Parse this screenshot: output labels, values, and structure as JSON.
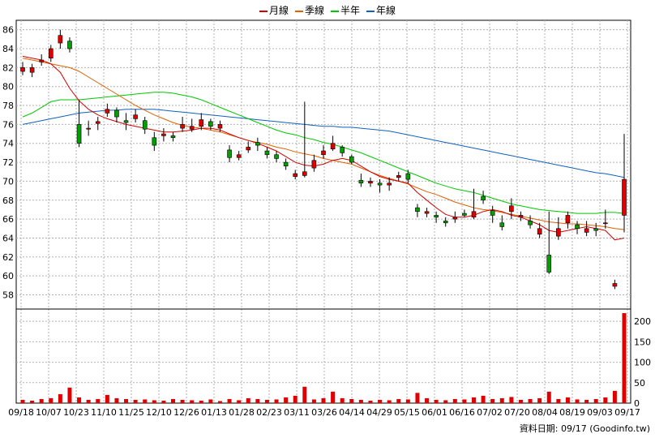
{
  "legend": [
    {
      "label": "月線",
      "color": "#d40000"
    },
    {
      "label": "季線",
      "color": "#e06000"
    },
    {
      "label": "半年",
      "color": "#00c800"
    },
    {
      "label": "年線",
      "color": "#1060c0"
    }
  ],
  "source_note": "資料日期: 09/17  (Goodinfo.tw)",
  "chart_data": {
    "type": "candlestick",
    "x_tick_labels": [
      "09/18",
      "10/07",
      "10/23",
      "11/10",
      "11/25",
      "12/10",
      "12/26",
      "01/13",
      "01/28",
      "02/23",
      "03/11",
      "03/26",
      "04/14",
      "04/29",
      "05/15",
      "06/01",
      "06/16",
      "07/02",
      "07/20",
      "08/04",
      "08/19",
      "09/03",
      "09/17"
    ],
    "price_axis": {
      "ticks": [
        58,
        60,
        62,
        64,
        66,
        68,
        70,
        72,
        74,
        76,
        78,
        80,
        82,
        84,
        86
      ],
      "range": [
        56.5,
        87.0
      ]
    },
    "volume_axis": {
      "ticks": [
        0,
        50,
        100,
        150,
        200
      ],
      "range": [
        0,
        230
      ]
    },
    "price_close": [
      82.0,
      82.0,
      82.8,
      84.0,
      85.4,
      84.0,
      74.0,
      75.6,
      76.3,
      77.6,
      76.8,
      76.2,
      77.0,
      75.5,
      73.8,
      75.0,
      74.6,
      76.0,
      75.8,
      76.5,
      75.8,
      76.0,
      72.5,
      72.8,
      73.6,
      73.8,
      72.8,
      72.4,
      71.6,
      70.8,
      71.0,
      72.2,
      73.2,
      74.0,
      73.0,
      72.0,
      69.8,
      70.0,
      69.6,
      69.8,
      70.6,
      70.2,
      66.8,
      66.8,
      66.2,
      65.6,
      66.2,
      66.4,
      66.8,
      68.0,
      66.4,
      65.2,
      67.4,
      66.4,
      65.4,
      65.0,
      60.4,
      65.0,
      66.4,
      65.0,
      65.0,
      64.8,
      65.6,
      59.2,
      70.2
    ],
    "price_open": [
      81.6,
      81.5,
      82.6,
      83.0,
      84.6,
      84.8,
      76.0,
      75.5,
      76.1,
      77.2,
      77.5,
      76.4,
      76.6,
      76.4,
      74.6,
      74.8,
      74.8,
      75.6,
      75.5,
      75.8,
      76.3,
      75.6,
      73.3,
      72.5,
      73.3,
      74.1,
      73.2,
      72.8,
      72.0,
      70.5,
      70.6,
      71.4,
      72.8,
      73.4,
      73.6,
      72.6,
      70.1,
      69.8,
      69.8,
      69.6,
      70.4,
      70.8,
      67.2,
      66.6,
      66.4,
      65.8,
      66.0,
      66.6,
      66.2,
      68.4,
      66.9,
      65.6,
      66.8,
      66.2,
      65.8,
      64.4,
      62.2,
      64.2,
      65.6,
      65.4,
      64.6,
      65.0,
      65.6,
      58.9,
      66.4
    ],
    "price_high": [
      82.6,
      82.4,
      83.4,
      84.4,
      86.0,
      85.2,
      78.6,
      76.4,
      76.8,
      78.2,
      77.8,
      77.2,
      77.6,
      76.8,
      75.2,
      75.6,
      75.2,
      76.8,
      76.6,
      77.2,
      76.6,
      76.4,
      73.8,
      73.2,
      74.2,
      74.6,
      73.6,
      73.2,
      72.4,
      71.2,
      78.4,
      72.8,
      73.8,
      74.8,
      73.8,
      72.8,
      70.8,
      70.4,
      70.2,
      70.4,
      71.0,
      71.2,
      67.6,
      67.2,
      66.8,
      66.2,
      66.8,
      67.0,
      69.2,
      69.0,
      67.4,
      66.4,
      68.2,
      66.8,
      66.4,
      65.6,
      66.8,
      66.2,
      66.8,
      65.8,
      65.8,
      65.6,
      67.0,
      59.6,
      75.0
    ],
    "price_low": [
      81.2,
      81.0,
      82.2,
      82.6,
      84.0,
      83.6,
      73.6,
      74.8,
      75.4,
      76.8,
      76.2,
      75.4,
      76.2,
      75.0,
      73.2,
      74.2,
      74.2,
      75.2,
      75.2,
      75.4,
      75.4,
      75.2,
      72.0,
      72.2,
      73.0,
      73.2,
      72.4,
      72.0,
      71.2,
      70.2,
      70.4,
      71.0,
      72.4,
      73.2,
      72.6,
      71.8,
      69.4,
      69.4,
      68.8,
      69.0,
      70.0,
      69.8,
      66.2,
      66.2,
      65.6,
      65.2,
      65.6,
      66.2,
      66.0,
      67.6,
      65.6,
      64.8,
      66.0,
      65.8,
      65.0,
      64.0,
      60.2,
      63.8,
      65.0,
      64.4,
      64.2,
      64.2,
      65.0,
      58.6,
      64.6
    ],
    "volume": [
      8,
      6,
      10,
      12,
      22,
      38,
      14,
      8,
      10,
      20,
      12,
      10,
      8,
      9,
      7,
      6,
      10,
      8,
      7,
      6,
      9,
      5,
      10,
      7,
      12,
      10,
      8,
      9,
      14,
      18,
      40,
      9,
      12,
      28,
      12,
      10,
      8,
      6,
      8,
      7,
      10,
      9,
      25,
      12,
      8,
      7,
      10,
      9,
      14,
      18,
      10,
      12,
      15,
      8,
      10,
      12,
      28,
      10,
      14,
      9,
      8,
      10,
      14,
      30,
      220
    ],
    "ma_month": [
      83.2,
      83.0,
      82.8,
      82.4,
      81.5,
      79.8,
      78.5,
      77.6,
      77.0,
      76.6,
      76.3,
      76.0,
      75.8,
      75.6,
      75.4,
      75.2,
      75.2,
      75.3,
      75.4,
      75.6,
      75.6,
      75.4,
      75.0,
      74.6,
      74.3,
      74.0,
      73.6,
      73.2,
      72.6,
      72.0,
      71.7,
      71.6,
      71.8,
      72.2,
      72.4,
      72.2,
      71.6,
      71.0,
      70.5,
      70.2,
      70.0,
      69.8,
      68.8,
      68.0,
      67.2,
      66.5,
      66.2,
      66.2,
      66.4,
      66.8,
      67.0,
      66.8,
      66.4,
      66.2,
      65.8,
      65.4,
      64.8,
      64.6,
      64.8,
      65.0,
      65.2,
      65.0,
      64.8,
      63.8,
      64.0
    ],
    "ma_quarter": [
      83.0,
      82.8,
      82.6,
      82.4,
      82.2,
      82.0,
      81.6,
      81.0,
      80.4,
      79.8,
      79.2,
      78.6,
      78.0,
      77.5,
      77.0,
      76.6,
      76.2,
      75.9,
      75.7,
      75.6,
      75.4,
      75.2,
      74.9,
      74.6,
      74.3,
      74.1,
      73.9,
      73.6,
      73.4,
      73.1,
      72.9,
      72.7,
      72.4,
      72.2,
      72.0,
      71.8,
      71.4,
      71.0,
      70.6,
      70.3,
      70.0,
      69.7,
      69.3,
      68.9,
      68.6,
      68.2,
      67.8,
      67.5,
      67.2,
      67.0,
      66.9,
      66.7,
      66.5,
      66.3,
      66.1,
      65.9,
      65.7,
      65.6,
      65.5,
      65.5,
      65.4,
      65.3,
      65.2,
      65.0,
      64.9
    ],
    "ma_half": [
      76.8,
      77.2,
      77.8,
      78.4,
      78.6,
      78.6,
      78.6,
      78.7,
      78.8,
      78.9,
      79.0,
      79.1,
      79.2,
      79.3,
      79.4,
      79.4,
      79.3,
      79.1,
      78.9,
      78.6,
      78.2,
      77.8,
      77.4,
      77.0,
      76.6,
      76.2,
      75.8,
      75.4,
      75.1,
      74.9,
      74.6,
      74.4,
      74.1,
      73.9,
      73.6,
      73.3,
      73.0,
      72.6,
      72.2,
      71.8,
      71.4,
      71.0,
      70.6,
      70.2,
      69.8,
      69.5,
      69.2,
      69.0,
      68.8,
      68.5,
      68.2,
      67.9,
      67.6,
      67.4,
      67.2,
      67.0,
      66.9,
      66.8,
      66.7,
      66.6,
      66.6,
      66.6,
      66.7,
      66.7,
      66.6
    ],
    "ma_year": [
      76.0,
      76.2,
      76.4,
      76.6,
      76.8,
      77.0,
      77.2,
      77.3,
      77.4,
      77.5,
      77.5,
      77.6,
      77.6,
      77.6,
      77.6,
      77.5,
      77.4,
      77.3,
      77.2,
      77.1,
      77.0,
      76.9,
      76.8,
      76.7,
      76.6,
      76.5,
      76.4,
      76.3,
      76.2,
      76.1,
      76.0,
      75.9,
      75.8,
      75.8,
      75.7,
      75.7,
      75.6,
      75.5,
      75.4,
      75.3,
      75.1,
      74.9,
      74.7,
      74.5,
      74.3,
      74.1,
      73.9,
      73.7,
      73.5,
      73.3,
      73.1,
      72.9,
      72.7,
      72.5,
      72.3,
      72.1,
      71.9,
      71.7,
      71.5,
      71.3,
      71.1,
      70.9,
      70.8,
      70.6,
      70.4
    ],
    "colors": {
      "up": "#e00000",
      "down": "#00a000",
      "volume": "#e00000",
      "grid": "#b0b0b0"
    }
  }
}
